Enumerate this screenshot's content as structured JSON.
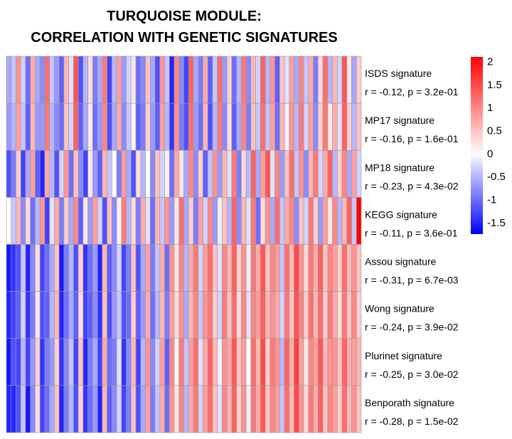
{
  "chart_data": {
    "type": "heatmap",
    "title": [
      "TURQUOISE MODULE:",
      "CORRELATION WITH GENETIC SIGNATURES"
    ],
    "rows": [
      {
        "name": "ISDS signature",
        "stat": "r = -0.12, p = 3.2e-01"
      },
      {
        "name": "MP17 signature",
        "stat": "r = -0.16, p = 1.6e-01"
      },
      {
        "name": "MP18 signature",
        "stat": "r = -0.23, p = 4.3e-02"
      },
      {
        "name": "KEGG signature",
        "stat": "r = -0.11, p = 3.6e-01"
      },
      {
        "name": "Assou signature",
        "stat": "r = -0.31, p = 6.7e-03"
      },
      {
        "name": "Wong signature",
        "stat": "r = -0.24, p = 3.9e-02"
      },
      {
        "name": "Plurinet signature",
        "stat": "r = -0.25, p = 3.0e-02"
      },
      {
        "name": "Benporath signature",
        "stat": "r = -0.28, p = 1.5e-02"
      }
    ],
    "n_columns": 74,
    "color_scale": {
      "min": -1.75,
      "max": 2.1,
      "low_color": "#0000ff",
      "mid_color": "#ffffff",
      "high_color": "#ff0000",
      "ticks": [
        2,
        1.5,
        1,
        0.5,
        0,
        -0.5,
        -1,
        -1.5
      ],
      "tick_labels": [
        "2",
        "1.5",
        "1",
        "0.5",
        "0",
        "-0.5",
        "-1",
        "-1.5"
      ]
    },
    "values": [
      [
        -0.6,
        -0.4,
        0.9,
        -0.3,
        -1.0,
        0.7,
        -0.6,
        -0.8,
        1.2,
        -0.4,
        -0.7,
        -1.1,
        0.6,
        -0.2,
        1.4,
        -1.2,
        -0.5,
        0.3,
        -0.9,
        -0.6,
        1.1,
        -1.3,
        -0.5,
        0.8,
        -0.7,
        -0.3,
        0.2,
        -1.0,
        -0.8,
        0.5,
        -0.6,
        -1.2,
        0.9,
        -0.4,
        -1.5,
        1.0,
        -0.8,
        -1.3,
        1.3,
        -0.6,
        -0.9,
        0.7,
        -1.1,
        -0.4,
        1.2,
        -0.7,
        0.4,
        -1.0,
        -0.5,
        1.1,
        -0.8,
        0.6,
        -0.3,
        1.3,
        -0.5,
        0.9,
        -1.1,
        0.5,
        -0.2,
        0.8,
        -0.6,
        1.0,
        -0.4,
        0.7,
        -0.9,
        0.3,
        1.2,
        -0.5,
        0.6,
        -0.3,
        1.4,
        0.2,
        -0.6,
        0.4
      ],
      [
        -0.7,
        -0.5,
        0.8,
        -0.4,
        -1.1,
        0.6,
        -0.7,
        -0.7,
        1.1,
        -0.5,
        -0.8,
        -1.0,
        0.5,
        -0.3,
        1.3,
        -1.1,
        -0.6,
        0.2,
        -1.0,
        -0.7,
        1.0,
        -1.2,
        -0.6,
        0.7,
        -0.8,
        -0.4,
        0.1,
        -1.1,
        -0.9,
        0.4,
        -0.7,
        -1.1,
        0.8,
        -0.5,
        -1.4,
        0.9,
        -0.9,
        -1.2,
        1.2,
        -0.7,
        -1.0,
        0.6,
        -1.2,
        -0.5,
        1.1,
        -0.8,
        0.3,
        -1.1,
        -0.6,
        1.0,
        -0.9,
        0.5,
        -0.4,
        1.2,
        -0.4,
        0.8,
        -1.0,
        0.6,
        -0.1,
        0.9,
        -0.5,
        1.1,
        -0.3,
        0.8,
        -0.8,
        0.4,
        1.1,
        0.2,
        0.7,
        -0.2,
        1.3,
        0.4,
        -0.5,
        0.5
      ],
      [
        -1.2,
        -0.9,
        0.4,
        -1.3,
        -0.6,
        0.8,
        -1.1,
        -1.5,
        0.7,
        -0.5,
        -1.2,
        -0.3,
        0.9,
        -1.0,
        0.5,
        -0.8,
        -1.3,
        0.2,
        -0.7,
        -1.1,
        0.6,
        -0.4,
        0.0,
        -0.9,
        0.8,
        -0.6,
        -1.2,
        0.3,
        -0.5,
        0.0,
        -0.8,
        0.5,
        -0.3,
        0.1,
        -1.0,
        0.7,
        0.2,
        -0.6,
        1.0,
        -0.8,
        0.4,
        -1.1,
        -0.4,
        0.9,
        -0.7,
        0.6,
        -0.2,
        1.1,
        -0.9,
        0.3,
        -0.5,
        1.3,
        -0.6,
        0.8,
        1.4,
        -0.2,
        1.0,
        -0.7,
        0.5,
        1.2,
        -0.4,
        0.9,
        -0.8,
        0.6,
        1.1,
        -0.3,
        0.7,
        1.3,
        -0.5,
        0.4,
        1.0,
        -0.6,
        0.8,
        -0.3
      ],
      [
        0.0,
        -0.4,
        0.6,
        -0.8,
        0.3,
        -1.0,
        -0.5,
        0.9,
        -1.3,
        -0.2,
        0.7,
        -0.9,
        0.4,
        -0.6,
        1.0,
        -1.1,
        0.2,
        -0.7,
        0.8,
        -0.3,
        -1.2,
        0.5,
        -0.8,
        0.1,
        1.1,
        -0.5,
        0.3,
        -0.9,
        0.7,
        -0.2,
        -1.0,
        0.6,
        -0.4,
        0.9,
        -0.7,
        0.2,
        1.2,
        -0.6,
        0.4,
        -0.9,
        0.8,
        -0.3,
        1.0,
        -0.7,
        -0.1,
        0.5,
        -0.5,
        1.3,
        -0.8,
        0.6,
        -0.2,
        1.1,
        -1.0,
        0.3,
        0.9,
        -0.6,
        1.2,
        -0.4,
        0.7,
        1.0,
        -0.8,
        0.5,
        -0.3,
        1.1,
        0.4,
        -0.7,
        0.8,
        0.2,
        1.0,
        -0.5,
        0.6,
        1.3,
        -0.4,
        2.1
      ],
      [
        -1.6,
        -1.4,
        -1.2,
        -0.4,
        -1.5,
        -0.8,
        0.3,
        -1.3,
        -1.0,
        -0.6,
        0.5,
        -1.6,
        -0.9,
        -0.5,
        -1.2,
        0.4,
        -1.4,
        -1.0,
        -0.7,
        -1.5,
        0.6,
        -1.1,
        -0.8,
        -0.3,
        -1.3,
        -0.9,
        0.5,
        -1.2,
        -0.6,
        0.8,
        -0.9,
        -0.4,
        0.7,
        -1.0,
        0.9,
        0.2,
        1.0,
        -0.5,
        0.7,
        1.1,
        -0.3,
        0.8,
        1.2,
        0.5,
        -0.2,
        1.0,
        0.6,
        1.3,
        0.4,
        0.9,
        -0.1,
        1.1,
        0.7,
        1.4,
        0.5,
        1.0,
        0.8,
        -0.4,
        1.2,
        0.6,
        1.5,
        0.9,
        0.3,
        1.1,
        0.7,
        1.3,
        0.5,
        1.0,
        0.8,
        0.4,
        1.2,
        0.6,
        0.9,
        0.5
      ],
      [
        -1.5,
        -1.3,
        -1.1,
        -0.3,
        -1.4,
        -0.9,
        0.2,
        -1.2,
        -1.1,
        -0.5,
        0.6,
        -1.5,
        -1.0,
        -0.6,
        -1.1,
        0.3,
        -1.3,
        -1.1,
        -0.8,
        -1.4,
        0.5,
        -1.2,
        -0.7,
        -0.4,
        -1.2,
        -1.0,
        0.4,
        -1.1,
        -0.7,
        0.7,
        -1.0,
        -0.5,
        0.6,
        -0.9,
        0.8,
        0.3,
        0.9,
        -0.6,
        0.6,
        1.0,
        -0.4,
        0.9,
        1.1,
        0.4,
        -0.3,
        1.1,
        0.5,
        1.2,
        0.3,
        1.0,
        -0.2,
        1.0,
        0.8,
        1.3,
        0.6,
        0.9,
        0.7,
        -0.3,
        1.1,
        0.5,
        1.4,
        1.0,
        0.4,
        1.2,
        0.6,
        1.2,
        0.4,
        1.1,
        0.7,
        0.3,
        1.1,
        0.5,
        1.0,
        0.4
      ],
      [
        -1.6,
        -1.2,
        -1.3,
        -0.5,
        -1.3,
        -0.7,
        0.4,
        -1.4,
        -0.9,
        -0.7,
        0.4,
        -1.4,
        -0.8,
        -0.4,
        -1.3,
        0.5,
        -1.5,
        -0.9,
        -0.6,
        -1.3,
        0.7,
        -1.0,
        -0.9,
        -0.2,
        -1.4,
        -0.8,
        0.6,
        -1.3,
        -0.5,
        0.9,
        -0.8,
        -0.3,
        0.8,
        -1.1,
        1.0,
        0.1,
        1.1,
        -0.4,
        0.8,
        1.2,
        -0.2,
        0.7,
        1.3,
        0.6,
        -0.1,
        0.9,
        0.7,
        1.4,
        0.5,
        0.8,
        0.0,
        1.2,
        0.6,
        1.5,
        0.4,
        1.1,
        0.9,
        -0.5,
        1.3,
        0.7,
        1.6,
        0.8,
        0.2,
        1.0,
        0.8,
        1.4,
        0.6,
        0.9,
        0.9,
        0.5,
        1.3,
        0.7,
        0.8,
        0.6
      ],
      [
        -1.5,
        -1.5,
        -1.2,
        -0.4,
        -1.6,
        -0.8,
        0.3,
        -1.3,
        -1.0,
        -0.6,
        0.5,
        -1.5,
        -0.9,
        -0.5,
        -1.2,
        0.4,
        -1.4,
        -1.0,
        -0.7,
        -1.5,
        0.6,
        -1.1,
        -0.8,
        -0.3,
        -1.3,
        -0.9,
        0.5,
        -1.2,
        -0.6,
        0.8,
        -0.9,
        -0.4,
        0.7,
        -1.0,
        0.9,
        0.2,
        1.0,
        -0.5,
        0.7,
        1.1,
        -0.3,
        0.8,
        1.2,
        0.5,
        -0.2,
        1.0,
        0.6,
        1.3,
        0.4,
        0.9,
        -0.1,
        1.1,
        0.7,
        1.4,
        0.5,
        1.0,
        0.8,
        -0.4,
        1.2,
        0.6,
        1.5,
        0.9,
        0.3,
        1.1,
        0.7,
        1.3,
        0.5,
        1.0,
        0.8,
        0.4,
        1.2,
        0.6,
        0.9,
        0.5
      ]
    ]
  }
}
